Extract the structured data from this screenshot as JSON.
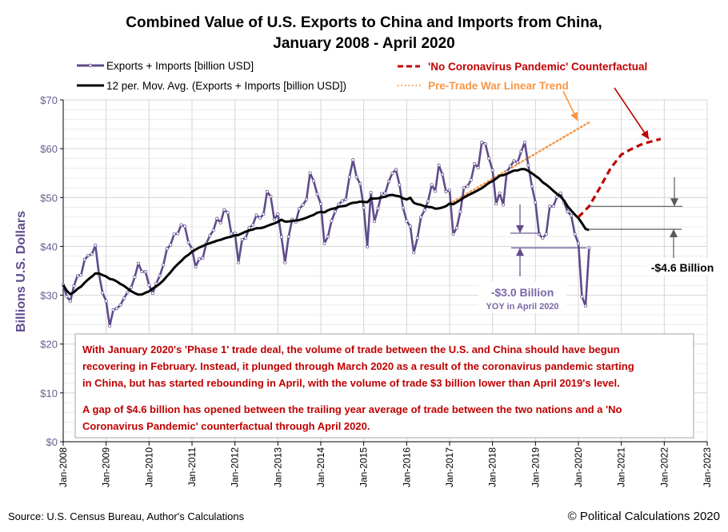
{
  "chart_data": {
    "type": "line",
    "title": "Combined Value of U.S. Exports to China and Imports from China,",
    "subtitle": "January 2008 - April 2020",
    "ylabel": "Billions U.S. Dollars",
    "xlabel": "",
    "ylim": [
      0,
      70
    ],
    "xlim": [
      "2008-01",
      "2023-01"
    ],
    "grid": true,
    "legend_placement": "top",
    "y_ticks": [
      "$0",
      "$10",
      "$20",
      "$30",
      "$40",
      "$50",
      "$60",
      "$70"
    ],
    "x_ticks": [
      "Jan-2008",
      "Jan-2009",
      "Jan-2010",
      "Jan-2011",
      "Jan-2012",
      "Jan-2013",
      "Jan-2014",
      "Jan-2015",
      "Jan-2016",
      "Jan-2017",
      "Jan-2018",
      "Jan-2019",
      "Jan-2020",
      "Jan-2021",
      "Jan-2022",
      "Jan-2023"
    ],
    "start_month": "2008-01",
    "series": [
      {
        "name": "Exports + Imports [billion USD]",
        "color": "#5f4b8b",
        "values": [
          32.1,
          29.7,
          28.8,
          31.9,
          34.0,
          34.1,
          37.3,
          38.1,
          38.4,
          40.2,
          34.3,
          30.5,
          28.8,
          23.7,
          27.0,
          27.3,
          28.0,
          29.4,
          30.6,
          31.6,
          33.7,
          36.5,
          34.8,
          34.8,
          32.1,
          30.4,
          32.4,
          34.0,
          36.2,
          39.5,
          40.3,
          42.5,
          42.6,
          44.4,
          44.1,
          40.8,
          39.5,
          35.8,
          37.4,
          37.6,
          40.6,
          42.2,
          43.3,
          45.7,
          44.8,
          47.5,
          46.9,
          42.6,
          42.7,
          36.7,
          41.4,
          41.7,
          43.8,
          44.4,
          46.4,
          45.8,
          46.6,
          51.2,
          50.2,
          45.5,
          46.6,
          41.9,
          36.7,
          42.0,
          45.5,
          45.0,
          47.7,
          48.5,
          49.6,
          55.0,
          53.4,
          50.7,
          48.7,
          40.6,
          42.0,
          45.2,
          47.1,
          48.6,
          49.3,
          49.6,
          54.2,
          57.7,
          54.2,
          52.8,
          47.9,
          39.9,
          51.0,
          45.1,
          47.8,
          50.8,
          50.9,
          53.3,
          55.0,
          55.7,
          52.6,
          47.9,
          45.2,
          44.1,
          38.7,
          41.7,
          46.0,
          47.4,
          49.3,
          52.6,
          51.3,
          56.6,
          54.7,
          51.2,
          51.5,
          42.5,
          43.8,
          47.1,
          52.0,
          52.3,
          53.6,
          56.9,
          56.1,
          61.3,
          61.0,
          58.0,
          55.6,
          48.7,
          50.9,
          48.5,
          55.3,
          56.4,
          57.5,
          57.2,
          59.4,
          61.3,
          56.6,
          52.3,
          49.0,
          42.5,
          41.7,
          42.5,
          48.2,
          48.2,
          50.1,
          50.9,
          49.0,
          47.1,
          46.3,
          42.5,
          40.6,
          29.7,
          27.8,
          39.7
        ]
      },
      {
        "name": "12 per. Mov. Avg. (Exports + Imports [billion USD])",
        "color": "#000000",
        "derived": "12-month moving average"
      },
      {
        "name": "'No Coronavirus Pandemic' Counterfactual",
        "color": "#c00000",
        "points": [
          [
            "2020-01",
            46.0
          ],
          [
            "2020-04",
            48.2
          ],
          [
            "2020-07",
            52.0
          ],
          [
            "2020-10",
            56.0
          ],
          [
            "2021-01",
            58.8
          ],
          [
            "2021-04",
            60.0
          ],
          [
            "2021-07",
            61.0
          ],
          [
            "2021-12",
            62.0
          ]
        ]
      },
      {
        "name": "Pre-Trade War Linear Trend",
        "color": "#f79646",
        "points": [
          [
            "2017-01",
            48.7
          ],
          [
            "2020-04",
            65.4
          ]
        ]
      }
    ],
    "annotations": {
      "gap_label": "-$4.6 Billion",
      "gap_values": [
        48.2,
        43.5
      ],
      "yoy_label": "-$3.0 Billion",
      "yoy_sub": "YOY in April 2020",
      "yoy_values": [
        42.7,
        39.7
      ],
      "note_lines": [
        "With January 2020's 'Phase 1' trade deal, the volume of trade between the U.S. and China should have begun",
        "recovering in February.  Instead, it plunged through March 2020 as a result of the coronavirus pandemic starting",
        "in China, but has started rebounding in April, with the volume of trade $3 billion lower than April 2019's level.",
        "A gap of $4.6 billion has opened between the trailing year average of trade between the two nations and a 'No",
        "Coronavirus Pandemic' counterfactual through April 2020."
      ]
    }
  },
  "footer": {
    "source": "Source: U.S. Census Bureau, Author's Calculations",
    "copyright": "© Political Calculations 2020"
  }
}
